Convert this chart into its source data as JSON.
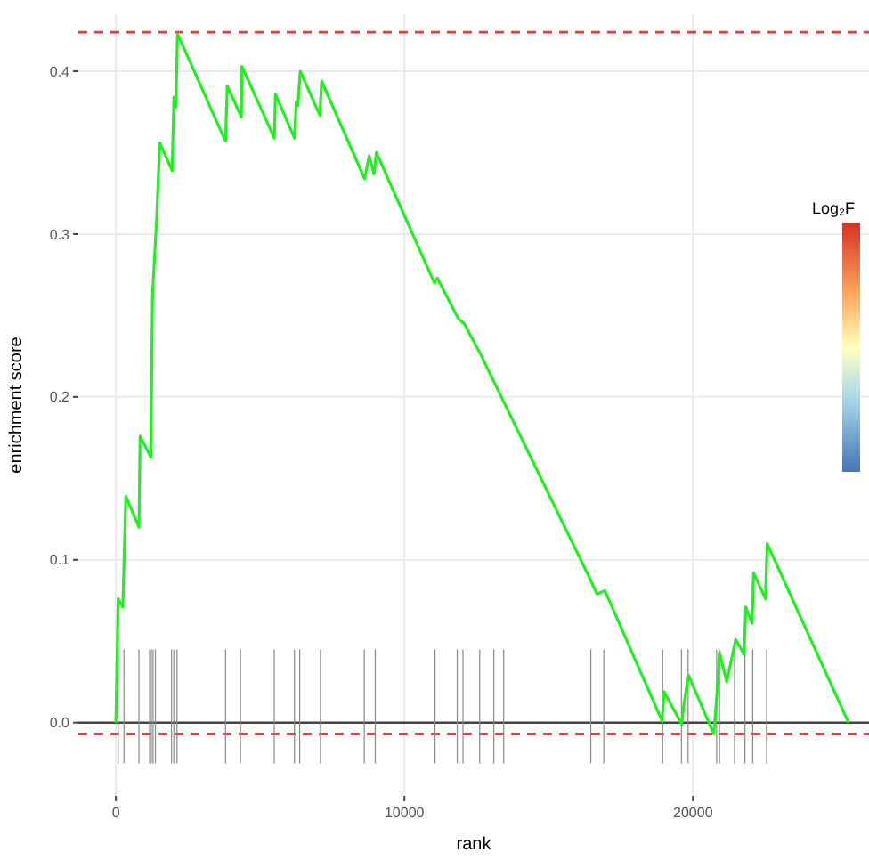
{
  "chart_data": {
    "type": "line",
    "xlabel": "rank",
    "ylabel": "enrichment score",
    "clabel": "Log₂F",
    "xlim": [
      -1300,
      26100
    ],
    "ylim": [
      -0.045,
      0.435
    ],
    "xticks": [
      0,
      10000,
      20000
    ],
    "yticks": [
      {
        "value": 0,
        "label": "0.0"
      },
      0.1,
      0.2,
      0.3,
      0.4
    ],
    "grid": true,
    "series": [
      {
        "color": "#22ee22",
        "x": [
          0,
          80,
          240,
          345,
          800,
          840,
          1210,
          1270,
          1415,
          1520,
          1950,
          2010,
          2080,
          2135,
          3800,
          3860,
          4350,
          4370,
          5490,
          5530,
          6190,
          6250,
          6310,
          6390,
          7070,
          7130,
          8620,
          8780,
          8945,
          9030,
          11040,
          11140,
          11870,
          12070,
          12590,
          16440,
          16670,
          16950,
          18930,
          19000,
          19610,
          19690,
          19850,
          20720,
          20820,
          20920,
          21170,
          21480,
          21770,
          21830,
          22050,
          22100,
          22510,
          22570,
          25390
        ],
        "values": [
          0,
          0.076,
          0.071,
          0.139,
          0.12,
          0.176,
          0.163,
          0.263,
          0.31,
          0.356,
          0.339,
          0.384,
          0.378,
          0.423,
          0.357,
          0.391,
          0.372,
          0.403,
          0.359,
          0.386,
          0.359,
          0.381,
          0.379,
          0.4,
          0.373,
          0.394,
          0.334,
          0.348,
          0.337,
          0.35,
          0.27,
          0.273,
          0.248,
          0.245,
          0.228,
          0.088,
          0.079,
          0.081,
          0.001,
          0.019,
          -0.001,
          0.012,
          0.029,
          -0.007,
          0.015,
          0.043,
          0.025,
          0.051,
          0.042,
          0.071,
          0.061,
          0.092,
          0.076,
          0.11,
          0
        ]
      }
    ],
    "ref_lines": [
      {
        "axis": "y",
        "value": 0.424,
        "color": "#ff3333",
        "line_style": "dashed"
      },
      {
        "axis": "y",
        "value": -0.007,
        "color": "#ff3333",
        "line_style": "dashed"
      },
      {
        "axis": "y",
        "value": 0,
        "color": "#444444",
        "line_style": "solid"
      },
      {
        "axis": "x",
        "value": 80,
        "color": "#888888"
      },
      {
        "axis": "x",
        "value": 280,
        "color": "#888888"
      },
      {
        "axis": "x",
        "value": 800,
        "color": "#888888"
      },
      {
        "axis": "x",
        "value": 1170,
        "color": "#888888"
      },
      {
        "axis": "x",
        "value": 1230,
        "color": "#888888"
      },
      {
        "axis": "x",
        "value": 1290,
        "color": "#888888"
      },
      {
        "axis": "x",
        "value": 1370,
        "color": "#888888"
      },
      {
        "axis": "x",
        "value": 1930,
        "color": "#888888"
      },
      {
        "axis": "x",
        "value": 2010,
        "color": "#888888"
      },
      {
        "axis": "x",
        "value": 2120,
        "color": "#888888"
      },
      {
        "axis": "x",
        "value": 3800,
        "color": "#888888"
      },
      {
        "axis": "x",
        "value": 4320,
        "color": "#888888"
      },
      {
        "axis": "x",
        "value": 5490,
        "color": "#888888"
      },
      {
        "axis": "x",
        "value": 6190,
        "color": "#888888"
      },
      {
        "axis": "x",
        "value": 6370,
        "color": "#888888"
      },
      {
        "axis": "x",
        "value": 7090,
        "color": "#888888"
      },
      {
        "axis": "x",
        "value": 8610,
        "color": "#888888"
      },
      {
        "axis": "x",
        "value": 8990,
        "color": "#888888"
      },
      {
        "axis": "x",
        "value": 11060,
        "color": "#888888"
      },
      {
        "axis": "x",
        "value": 11830,
        "color": "#888888"
      },
      {
        "axis": "x",
        "value": 12030,
        "color": "#888888"
      },
      {
        "axis": "x",
        "value": 12610,
        "color": "#888888"
      },
      {
        "axis": "x",
        "value": 13100,
        "color": "#888888"
      },
      {
        "axis": "x",
        "value": 13440,
        "color": "#888888"
      },
      {
        "axis": "x",
        "value": 16460,
        "color": "#888888"
      },
      {
        "axis": "x",
        "value": 16910,
        "color": "#888888"
      },
      {
        "axis": "x",
        "value": 18950,
        "color": "#888888"
      },
      {
        "axis": "x",
        "value": 19600,
        "color": "#888888"
      },
      {
        "axis": "x",
        "value": 19830,
        "color": "#888888"
      },
      {
        "axis": "x",
        "value": 20820,
        "color": "#888888"
      },
      {
        "axis": "x",
        "value": 20920,
        "color": "#888888"
      },
      {
        "axis": "x",
        "value": 21440,
        "color": "#888888"
      },
      {
        "axis": "x",
        "value": 21800,
        "color": "#888888"
      },
      {
        "axis": "x",
        "value": 22070,
        "color": "#888888"
      },
      {
        "axis": "x",
        "value": 22550,
        "color": "#888888"
      }
    ]
  }
}
